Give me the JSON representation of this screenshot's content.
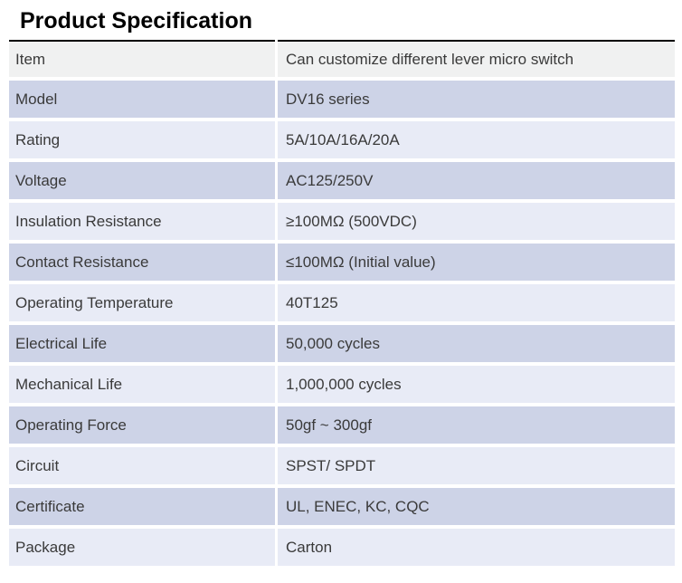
{
  "title": "Product Specification",
  "colors": {
    "header_row_bg": "#f0f1f1",
    "row_dark_bg": "#cdd3e7",
    "row_light_bg": "#e8ebf6",
    "table_top_border": "#000000",
    "text": "#3a3a3a"
  },
  "table": {
    "rows": [
      {
        "label": "Item",
        "value": "Can customize different lever micro switch"
      },
      {
        "label": "Model",
        "value": "DV16 series"
      },
      {
        "label": "Rating",
        "value": "5A/10A/16A/20A"
      },
      {
        "label": "Voltage",
        "value": "AC125/250V"
      },
      {
        "label": "Insulation Resistance",
        "value": "≥100MΩ (500VDC)"
      },
      {
        "label": "Contact Resistance",
        "value": "≤100MΩ (Initial value)"
      },
      {
        "label": "Operating Temperature",
        "value": "40T125"
      },
      {
        "label": "Electrical Life",
        "value": "50,000 cycles"
      },
      {
        "label": "Mechanical Life",
        "value": "1,000,000 cycles"
      },
      {
        "label": "Operating Force",
        "value": "50gf ~ 300gf"
      },
      {
        "label": "Circuit",
        "value": "SPST/ SPDT"
      },
      {
        "label": "Certificate",
        "value": "UL, ENEC, KC, CQC"
      },
      {
        "label": "Package",
        "value": "Carton"
      }
    ]
  }
}
